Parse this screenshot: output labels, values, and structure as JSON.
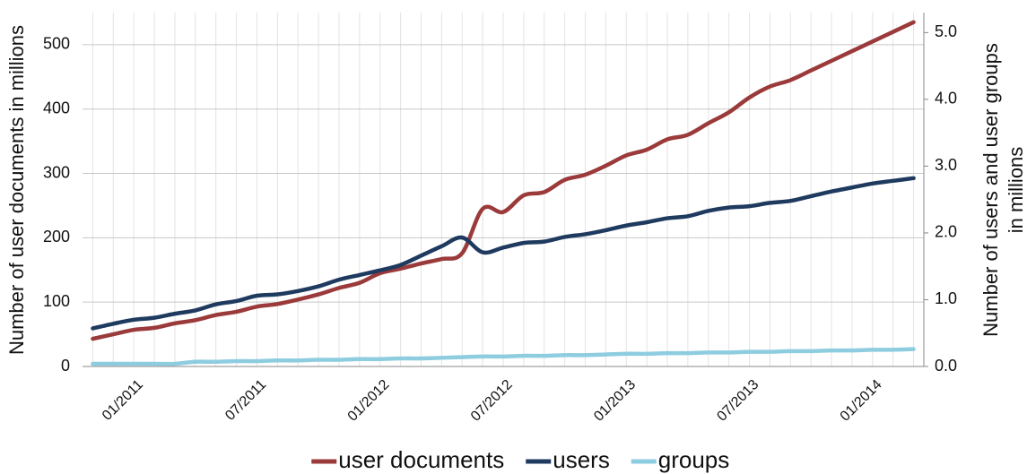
{
  "chart_data": {
    "type": "line",
    "categories": [
      null,
      null,
      "01/2011",
      null,
      null,
      null,
      null,
      null,
      "07/2011",
      null,
      null,
      null,
      null,
      null,
      "01/2012",
      null,
      null,
      null,
      null,
      null,
      "07/2012",
      null,
      null,
      null,
      null,
      null,
      "01/2013",
      null,
      null,
      null,
      null,
      null,
      "07/2013",
      null,
      null,
      null,
      null,
      null,
      "01/2014",
      null,
      null
    ],
    "series": [
      {
        "name": "user documents",
        "color": "#9b3a3a",
        "axis": "y",
        "values": [
          43,
          50,
          57,
          60,
          67,
          72,
          80,
          85,
          93,
          97,
          104,
          112,
          122,
          130,
          145,
          152,
          160,
          167,
          176,
          245,
          240,
          266,
          271,
          290,
          298,
          312,
          328,
          337,
          353,
          360,
          378,
          395,
          418,
          435,
          445,
          460,
          475,
          490,
          505,
          520,
          535
        ]
      },
      {
        "name": "users",
        "color": "#1f3a5f",
        "axis": "y2",
        "values": [
          0.57,
          0.64,
          0.7,
          0.73,
          0.79,
          0.84,
          0.93,
          0.98,
          1.06,
          1.08,
          1.13,
          1.2,
          1.3,
          1.37,
          1.44,
          1.52,
          1.66,
          1.8,
          1.93,
          1.71,
          1.78,
          1.85,
          1.87,
          1.94,
          1.98,
          2.04,
          2.11,
          2.16,
          2.22,
          2.25,
          2.33,
          2.38,
          2.4,
          2.45,
          2.48,
          2.55,
          2.62,
          2.68,
          2.74,
          2.78,
          2.82
        ]
      },
      {
        "name": "groups",
        "color": "#8ecde0",
        "axis": "y2",
        "values": [
          0.04,
          0.04,
          0.04,
          0.04,
          0.04,
          0.07,
          0.07,
          0.08,
          0.08,
          0.09,
          0.09,
          0.1,
          0.1,
          0.11,
          0.11,
          0.12,
          0.12,
          0.13,
          0.14,
          0.15,
          0.15,
          0.16,
          0.16,
          0.17,
          0.17,
          0.18,
          0.19,
          0.19,
          0.2,
          0.2,
          0.21,
          0.21,
          0.22,
          0.22,
          0.23,
          0.23,
          0.24,
          0.24,
          0.25,
          0.25,
          0.26
        ]
      }
    ],
    "ylabel": "Number of user documents in millions",
    "y2label": [
      "Number of users  and user groups",
      "in millions"
    ],
    "ylim": [
      0,
      550
    ],
    "yticks": [
      0,
      100,
      200,
      300,
      400,
      500
    ],
    "y2lim": [
      0,
      5.3
    ],
    "y2ticks": [
      {
        "value": 0,
        "label": "0.0"
      },
      {
        "value": 1,
        "label": "1.0"
      },
      {
        "value": 2,
        "label": "2.0"
      },
      {
        "value": 3,
        "label": "3.0"
      },
      {
        "value": 4,
        "label": "4.0"
      },
      {
        "value": 5,
        "label": "5.0"
      }
    ],
    "grid": true,
    "legend": "bottom"
  }
}
